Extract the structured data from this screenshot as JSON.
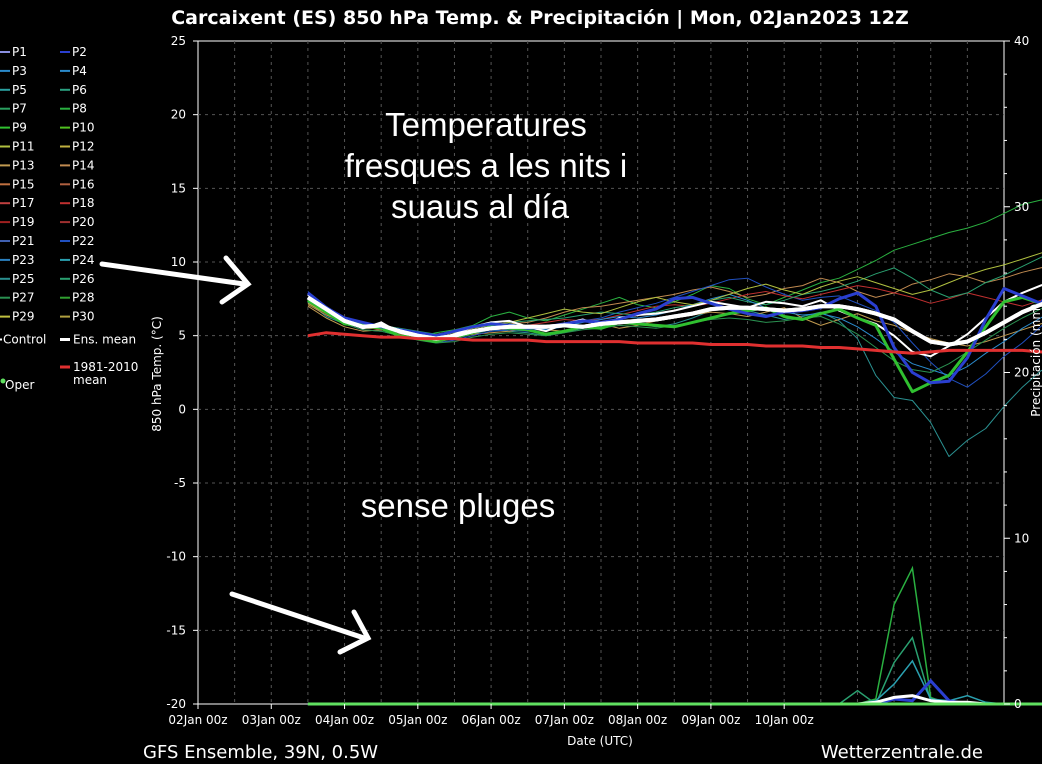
{
  "title": "Carcaixent  (ES)  850 hPa Temp. & Precipitación | Mon, 02Jan2023 12Z",
  "footer_left": "GFS Ensemble, 39N, 0.5W",
  "footer_right": "Wetterzentrale.de",
  "annotations": [
    "Temperatures",
    "fresques a les nits i",
    "suaus al día",
    "sense pluges"
  ],
  "legend": [
    {
      "name": "P1",
      "color": "#8a8fe0"
    },
    {
      "name": "P2",
      "color": "#2a3fd0"
    },
    {
      "name": "P3",
      "color": "#2a8acb"
    },
    {
      "name": "P4",
      "color": "#2a8acb"
    },
    {
      "name": "P5",
      "color": "#2aa0a0"
    },
    {
      "name": "P6",
      "color": "#2aa080"
    },
    {
      "name": "P7",
      "color": "#2aa060"
    },
    {
      "name": "P8",
      "color": "#2ab040"
    },
    {
      "name": "P9",
      "color": "#30c030"
    },
    {
      "name": "P10",
      "color": "#50c020"
    },
    {
      "name": "P11",
      "color": "#b0c040"
    },
    {
      "name": "P12",
      "color": "#c0b040"
    },
    {
      "name": "P13",
      "color": "#c09a50"
    },
    {
      "name": "P14",
      "color": "#c08a50"
    },
    {
      "name": "P15",
      "color": "#c07040"
    },
    {
      "name": "P16",
      "color": "#b06040"
    },
    {
      "name": "P17",
      "color": "#c04040"
    },
    {
      "name": "P18",
      "color": "#c03030"
    },
    {
      "name": "P19",
      "color": "#a02020"
    },
    {
      "name": "P20",
      "color": "#a03030"
    },
    {
      "name": "P21",
      "color": "#4060b0"
    },
    {
      "name": "P22",
      "color": "#2050c0"
    },
    {
      "name": "P23",
      "color": "#2a80c0"
    },
    {
      "name": "P24",
      "color": "#2aa0b0"
    },
    {
      "name": "P25",
      "color": "#2a9090"
    },
    {
      "name": "P26",
      "color": "#2aa070"
    },
    {
      "name": "P27",
      "color": "#2a9050"
    },
    {
      "name": "P28",
      "color": "#30a030"
    },
    {
      "name": "P29",
      "color": "#c0c040"
    },
    {
      "name": "P30",
      "color": "#b0a040"
    },
    {
      "name": "Control",
      "color": "#ffffff"
    },
    {
      "name": "Ens. mean",
      "color": "#ffffff"
    },
    {
      "name": "1981-2010 mean",
      "color": "#e03030"
    },
    {
      "name": "Oper",
      "color": "#60e060"
    }
  ],
  "chart_data": {
    "type": "line",
    "title": "Carcaixent  (ES)  850 hPa Temp. & Precipitación | Mon, 02Jan2023 12Z",
    "xlabel": "Date (UTC)",
    "ylabel": "850 hPa Temp. (°C)",
    "y2label": "Precipitación (mm)",
    "x_ticks": [
      "02Jan 00z",
      "03Jan 00z",
      "04Jan 00z",
      "05Jan 00z",
      "06Jan 00z",
      "07Jan 00z",
      "08Jan 00z",
      "09Jan 00z",
      "10Jan 00z"
    ],
    "x_range_hours": [
      0,
      264
    ],
    "x_start_offset_hours": 36,
    "ylim": [
      -20,
      25
    ],
    "y_ticks": [
      -20,
      -15,
      -10,
      -5,
      0,
      5,
      10,
      15,
      20,
      25
    ],
    "y2lim": [
      0,
      40
    ],
    "y2_ticks": [
      0,
      10,
      20,
      30,
      40
    ],
    "grid": true,
    "legend_placement": "left",
    "step_hours": 6,
    "series": [
      {
        "name": "Ens. mean",
        "color": "#ffffff",
        "width": 4,
        "values": [
          7.6,
          6.8,
          6.0,
          5.6,
          5.7,
          5.3,
          5.0,
          4.8,
          5.0,
          5.3,
          5.5,
          5.6,
          5.6,
          5.6,
          5.7,
          5.6,
          5.8,
          5.9,
          6.0,
          6.1,
          6.3,
          6.5,
          6.8,
          6.9,
          6.9,
          6.8,
          6.7,
          6.8,
          7.0,
          7.0,
          6.8,
          6.5,
          6.1,
          5.3,
          4.6,
          4.4,
          4.6,
          5.2,
          5.9,
          6.6,
          7.1,
          7.6,
          7.9
        ]
      },
      {
        "name": "Control",
        "color": "#ffffff",
        "width": 2,
        "values": [
          7.8,
          6.9,
          6.1,
          5.5,
          5.9,
          5.2,
          4.9,
          4.7,
          5.1,
          5.6,
          5.9,
          6.0,
          5.6,
          5.3,
          5.8,
          6.1,
          5.7,
          6.2,
          6.4,
          6.5,
          6.7,
          7.0,
          7.3,
          7.1,
          6.9,
          7.3,
          7.2,
          7.0,
          7.4,
          6.7,
          6.2,
          5.8,
          5.0,
          3.9,
          3.6,
          4.3,
          5.1,
          6.2,
          7.3,
          7.9,
          8.4,
          8.9,
          9.6
        ]
      },
      {
        "name": "Oper",
        "color": "#30c030",
        "width": 3,
        "values": [
          7.4,
          6.6,
          5.8,
          5.7,
          5.5,
          5.0,
          4.8,
          4.6,
          4.9,
          5.2,
          5.6,
          5.5,
          5.4,
          5.1,
          5.3,
          5.6,
          5.5,
          5.9,
          5.8,
          5.7,
          5.6,
          5.9,
          6.2,
          6.5,
          6.7,
          6.9,
          6.3,
          6.1,
          6.5,
          6.8,
          6.2,
          5.7,
          3.4,
          1.2,
          1.8,
          2.3,
          3.9,
          5.6,
          7.3,
          7.6,
          7.2,
          7.9,
          8.2
        ]
      },
      {
        "name": "P2",
        "color": "#2a3fd0",
        "width": 3,
        "values": [
          7.9,
          6.9,
          6.2,
          5.9,
          5.6,
          5.4,
          5.2,
          5.0,
          5.3,
          5.6,
          5.8,
          5.7,
          5.5,
          5.6,
          5.8,
          6.0,
          5.9,
          6.1,
          6.5,
          6.8,
          7.5,
          7.6,
          7.2,
          6.8,
          6.5,
          6.3,
          6.6,
          6.7,
          6.9,
          7.5,
          7.9,
          7.0,
          4.2,
          2.5,
          1.8,
          1.9,
          3.5,
          6.1,
          8.2,
          7.7,
          7.2,
          8.8,
          12.4
        ]
      },
      {
        "name": "P8",
        "color": "#2ab040",
        "width": 1,
        "values": [
          7.5,
          6.5,
          5.9,
          5.8,
          5.4,
          5.1,
          4.9,
          5.2,
          5.4,
          5.7,
          6.3,
          6.6,
          6.2,
          6.0,
          6.4,
          6.8,
          7.2,
          7.6,
          7.1,
          6.9,
          7.3,
          7.8,
          8.4,
          8.2,
          7.5,
          7.1,
          7.6,
          8.1,
          8.6,
          8.9,
          9.5,
          10.1,
          10.8,
          11.2,
          11.6,
          12.0,
          12.3,
          12.7,
          13.3,
          13.9,
          14.2,
          14.4,
          14.3
        ]
      },
      {
        "name": "P25",
        "color": "#2a9090",
        "width": 1,
        "values": [
          7.3,
          6.3,
          5.8,
          5.4,
          5.3,
          5.0,
          4.8,
          4.7,
          4.8,
          5.1,
          5.4,
          5.3,
          5.2,
          5.0,
          5.2,
          5.5,
          5.6,
          5.9,
          5.8,
          5.6,
          5.8,
          6.2,
          6.7,
          6.9,
          6.7,
          6.4,
          6.1,
          6.3,
          6.6,
          6.0,
          4.8,
          2.3,
          0.8,
          0.6,
          -0.9,
          -3.2,
          -2.1,
          -1.3,
          0.2,
          1.5,
          2.6,
          3.2,
          3.5
        ]
      },
      {
        "name": "P14",
        "color": "#c08a50",
        "width": 1,
        "values": [
          7.1,
          6.4,
          5.9,
          5.6,
          5.6,
          5.4,
          5.2,
          5.1,
          5.3,
          5.4,
          5.6,
          5.8,
          5.9,
          6.2,
          6.6,
          6.9,
          7.0,
          7.2,
          7.4,
          7.6,
          7.8,
          8.1,
          8.3,
          8.0,
          7.6,
          7.8,
          8.2,
          8.4,
          8.9,
          8.6,
          8.0,
          7.6,
          7.9,
          8.5,
          8.8,
          9.2,
          9.0,
          8.6,
          8.9,
          9.3,
          9.6,
          9.9,
          10.0
        ]
      },
      {
        "name": "P13",
        "color": "#c09a50",
        "width": 1,
        "values": [
          7.0,
          6.2,
          5.6,
          5.3,
          5.4,
          5.2,
          5.0,
          4.7,
          4.9,
          5.1,
          5.2,
          5.3,
          5.5,
          5.4,
          5.3,
          5.6,
          5.8,
          5.5,
          5.7,
          6.0,
          6.2,
          6.4,
          6.6,
          6.5,
          6.3,
          6.6,
          6.9,
          6.2,
          5.7,
          6.1,
          6.5,
          6.0,
          5.7,
          5.2,
          4.8,
          4.5,
          4.3,
          4.6,
          5.0,
          5.4,
          5.8,
          6.1,
          6.3
        ]
      },
      {
        "name": "P22",
        "color": "#2050c0",
        "width": 1,
        "values": [
          8.0,
          7.0,
          6.2,
          5.7,
          5.6,
          5.3,
          4.9,
          4.5,
          4.7,
          5.0,
          5.3,
          5.4,
          5.3,
          5.5,
          5.8,
          6.0,
          6.2,
          6.6,
          6.9,
          7.2,
          7.6,
          8.0,
          8.4,
          8.8,
          8.9,
          8.3,
          7.8,
          7.4,
          7.6,
          7.7,
          7.2,
          6.7,
          5.9,
          4.5,
          3.2,
          2.1,
          1.5,
          2.4,
          3.6,
          4.5,
          5.6,
          6.8,
          7.4
        ]
      },
      {
        "name": "P18",
        "color": "#c03030",
        "width": 1,
        "values": [
          7.2,
          6.6,
          6.0,
          5.6,
          5.4,
          5.1,
          5.0,
          4.9,
          5.1,
          5.3,
          5.4,
          5.5,
          5.7,
          5.9,
          6.1,
          6.0,
          6.1,
          6.4,
          6.7,
          7.0,
          7.1,
          7.0,
          7.2,
          7.5,
          7.8,
          8.0,
          7.7,
          7.5,
          7.8,
          8.1,
          8.4,
          8.2,
          7.9,
          7.6,
          7.2,
          7.5,
          7.9,
          7.6,
          7.3,
          7.0,
          7.4,
          7.8,
          8.1
        ]
      },
      {
        "name": "P26",
        "color": "#2aa070",
        "width": 1,
        "values": [
          7.4,
          6.7,
          6.1,
          5.8,
          5.7,
          5.5,
          5.3,
          5.1,
          5.2,
          5.5,
          5.7,
          5.9,
          6.0,
          6.1,
          6.2,
          6.4,
          6.6,
          6.5,
          6.4,
          6.6,
          6.9,
          7.1,
          7.4,
          7.6,
          7.3,
          7.1,
          7.4,
          7.8,
          8.0,
          8.3,
          8.7,
          9.2,
          9.6,
          8.9,
          8.1,
          7.6,
          7.9,
          8.6,
          9.1,
          9.7,
          10.3,
          10.9,
          11.2
        ]
      },
      {
        "name": "P4",
        "color": "#2a8acb",
        "width": 1,
        "values": [
          7.6,
          6.8,
          6.2,
          5.9,
          5.5,
          5.2,
          5.0,
          4.8,
          5.0,
          5.2,
          5.6,
          5.8,
          5.6,
          5.4,
          5.6,
          5.9,
          6.1,
          6.3,
          6.2,
          6.4,
          6.7,
          7.1,
          7.5,
          7.8,
          7.4,
          6.9,
          6.6,
          6.4,
          6.5,
          6.2,
          5.6,
          4.8,
          3.9,
          3.1,
          2.7,
          2.3,
          2.9,
          3.8,
          4.6,
          5.5,
          6.2,
          6.9,
          7.3
        ]
      },
      {
        "name": "P11",
        "color": "#b0c040",
        "width": 1,
        "values": [
          7.2,
          6.5,
          5.9,
          5.5,
          5.5,
          5.3,
          5.1,
          5.0,
          5.2,
          5.5,
          5.7,
          5.9,
          6.2,
          6.5,
          6.8,
          6.6,
          6.5,
          6.9,
          7.3,
          7.6,
          7.3,
          7.1,
          7.4,
          7.8,
          8.2,
          8.5,
          8.1,
          7.8,
          8.3,
          8.7,
          9.0,
          8.6,
          8.2,
          7.8,
          8.1,
          8.6,
          9.1,
          9.5,
          9.8,
          10.2,
          10.6,
          11.0,
          11.4
        ]
      },
      {
        "name": "P27",
        "color": "#2a9050",
        "width": 1,
        "values": [
          7.5,
          6.6,
          5.8,
          5.4,
          5.3,
          5.0,
          4.7,
          4.5,
          4.6,
          4.9,
          5.1,
          5.2,
          5.1,
          5.0,
          5.2,
          5.4,
          5.5,
          5.7,
          5.6,
          5.5,
          5.7,
          5.9,
          6.1,
          6.2,
          6.1,
          5.9,
          6.0,
          6.2,
          6.3,
          5.8,
          5.1,
          4.2,
          3.3,
          2.7,
          2.5,
          3.1,
          3.9,
          4.7,
          5.5,
          6.2,
          6.8,
          7.5,
          8.1
        ]
      }
    ],
    "climate_mean": {
      "name": "1981-2010 mean",
      "color": "#e03030",
      "values": [
        5.0,
        5.2,
        5.1,
        5.0,
        4.9,
        4.9,
        4.8,
        4.8,
        4.8,
        4.7,
        4.7,
        4.7,
        4.7,
        4.6,
        4.6,
        4.6,
        4.6,
        4.6,
        4.5,
        4.5,
        4.5,
        4.5,
        4.4,
        4.4,
        4.4,
        4.3,
        4.3,
        4.3,
        4.2,
        4.2,
        4.1,
        4.0,
        3.9,
        3.8,
        3.9,
        4.0,
        4.0,
        4.0,
        4.0,
        4.0,
        3.9,
        3.8,
        3.6
      ]
    },
    "precipitation": [
      {
        "name": "P8",
        "color": "#2ab040",
        "values": [
          0,
          0,
          0,
          0,
          0,
          0,
          0,
          0,
          0,
          0,
          0,
          0,
          0,
          0,
          0,
          0,
          0,
          0,
          0,
          0,
          0,
          0,
          0,
          0,
          0,
          0,
          0,
          0,
          0,
          0,
          0,
          0.3,
          6.0,
          8.2,
          0.4,
          0,
          0,
          0,
          0,
          0,
          0,
          0,
          0
        ]
      },
      {
        "name": "P26",
        "color": "#2aa070",
        "values": [
          0,
          0,
          0,
          0,
          0,
          0,
          0,
          0,
          0,
          0,
          0,
          0,
          0,
          0,
          0,
          0,
          0,
          0,
          0,
          0,
          0,
          0,
          0,
          0,
          0,
          0,
          0,
          0,
          0,
          0,
          0.8,
          0,
          2.5,
          4.0,
          0.2,
          0,
          0,
          0,
          0,
          0,
          0,
          0,
          0
        ]
      },
      {
        "name": "P24",
        "color": "#2aa0b0",
        "values": [
          0,
          0,
          0,
          0,
          0,
          0,
          0,
          0,
          0,
          0,
          0,
          0,
          0,
          0,
          0,
          0,
          0,
          0,
          0,
          0,
          0,
          0,
          0,
          0,
          0,
          0,
          0,
          0,
          0,
          0,
          0,
          0.2,
          1.2,
          2.6,
          0.3,
          0.2,
          0.5,
          0.1,
          0,
          0,
          0,
          0,
          0
        ]
      },
      {
        "name": "P2",
        "color": "#2a3fd0",
        "width": 3,
        "values": [
          0,
          0,
          0,
          0,
          0,
          0,
          0,
          0,
          0,
          0,
          0,
          0,
          0,
          0,
          0,
          0,
          0,
          0,
          0,
          0,
          0,
          0,
          0,
          0,
          0,
          0,
          0,
          0,
          0,
          0,
          0,
          0,
          0.3,
          0.2,
          1.4,
          0.2,
          0,
          0,
          0,
          0,
          0,
          0,
          0
        ]
      },
      {
        "name": "Ens. mean",
        "color": "#ffffff",
        "width": 3,
        "values": [
          0,
          0,
          0,
          0,
          0,
          0,
          0,
          0,
          0,
          0,
          0,
          0,
          0,
          0,
          0,
          0,
          0,
          0,
          0,
          0,
          0,
          0,
          0,
          0,
          0,
          0,
          0,
          0,
          0,
          0,
          0,
          0.1,
          0.4,
          0.5,
          0.2,
          0.1,
          0.1,
          0,
          0,
          0,
          0,
          0,
          0
        ]
      },
      {
        "name": "Oper",
        "color": "#60e060",
        "width": 3,
        "values": [
          0,
          0,
          0,
          0,
          0,
          0,
          0,
          0,
          0,
          0,
          0,
          0,
          0,
          0,
          0,
          0,
          0,
          0,
          0,
          0,
          0,
          0,
          0,
          0,
          0,
          0,
          0,
          0,
          0,
          0,
          0,
          0,
          0,
          0,
          0,
          0,
          0,
          0,
          0,
          0,
          0,
          0,
          0
        ]
      }
    ]
  }
}
